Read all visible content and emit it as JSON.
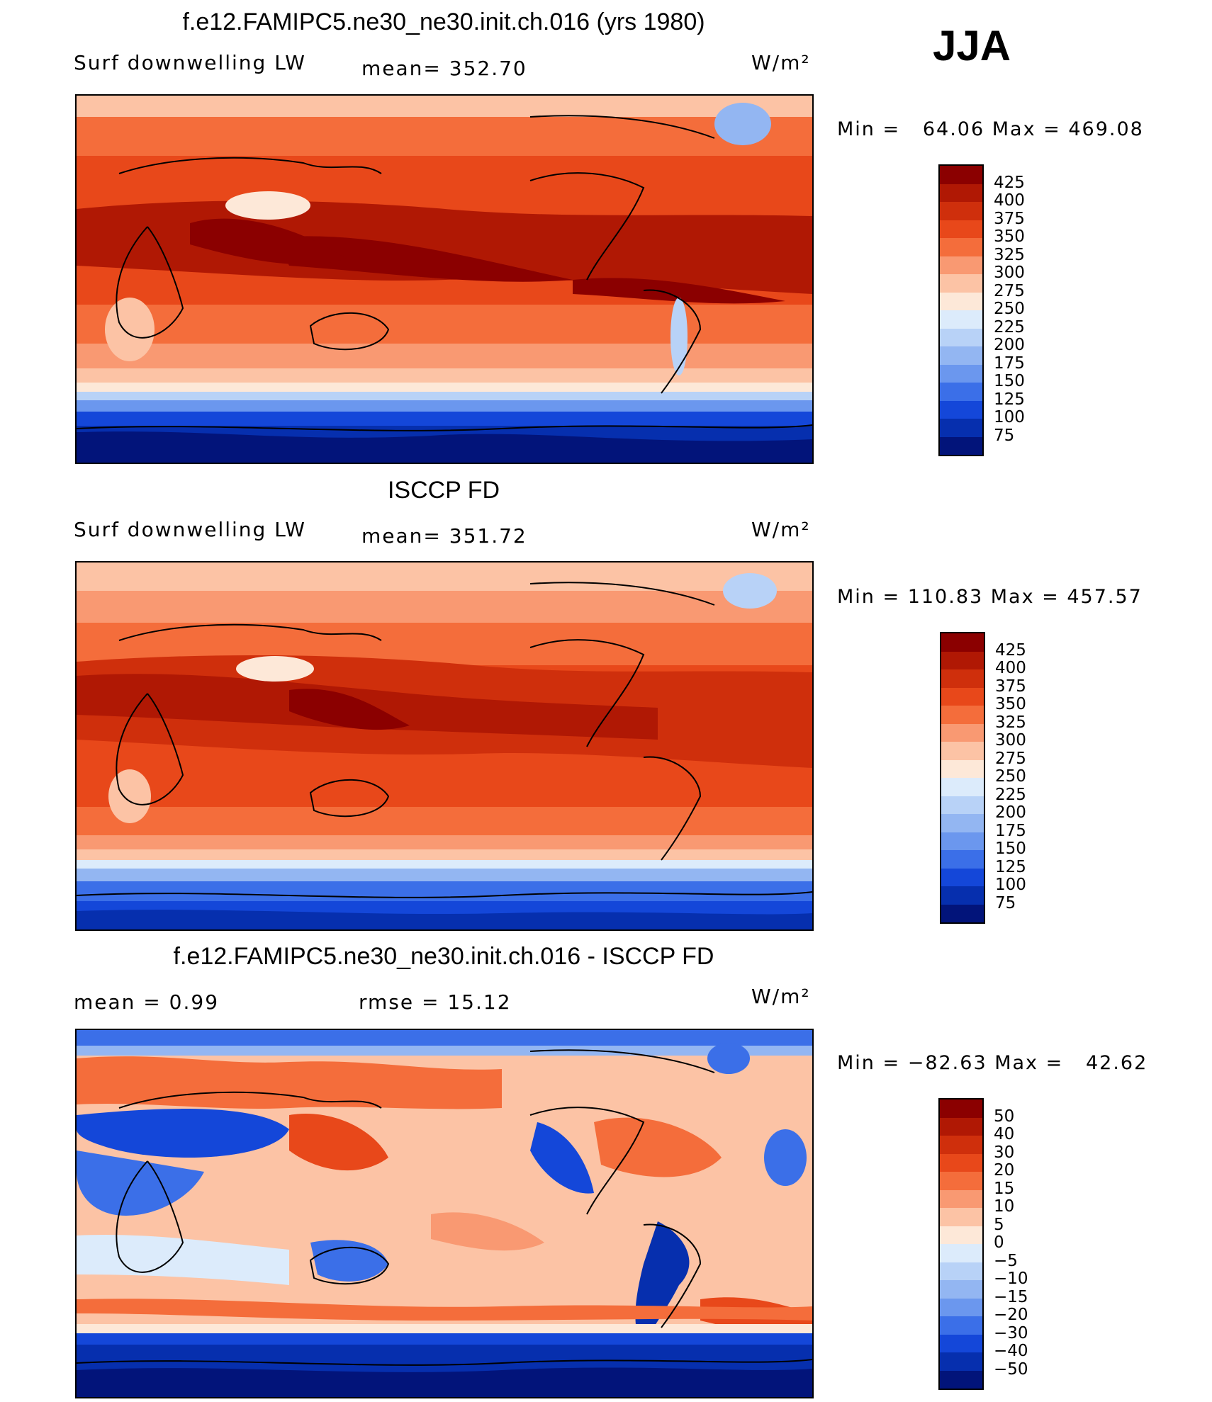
{
  "season": "JJA",
  "panels": [
    {
      "title": "f.e12.FAMIPC5.ne30_ne30.init.ch.016 (yrs 1980)",
      "left_label": "Surf downwelling LW",
      "mid_label": "mean= 352.70",
      "units": "W/m²",
      "stats": "Min =   64.06 Max = 469.08",
      "colorbar": {
        "labels": [
          "425",
          "400",
          "375",
          "350",
          "325",
          "300",
          "275",
          "250",
          "225",
          "200",
          "175",
          "150",
          "125",
          "100",
          "75"
        ],
        "colors": [
          "#8b0000",
          "#b01804",
          "#cf2f0c",
          "#e8481a",
          "#f46d3b",
          "#f99972",
          "#fcc3a5",
          "#fde8d8",
          "#dcebfb",
          "#b8d2f7",
          "#93b6f2",
          "#6b97ee",
          "#3b6fe8",
          "#1447d9",
          "#062fae",
          "#02147a"
        ]
      },
      "map_style": "model"
    },
    {
      "title": "ISCCP FD",
      "left_label": "Surf downwelling LW",
      "mid_label": "mean= 351.72",
      "units": "W/m²",
      "stats": "Min = 110.83 Max = 457.57",
      "colorbar": {
        "labels": [
          "425",
          "400",
          "375",
          "350",
          "325",
          "300",
          "275",
          "250",
          "225",
          "200",
          "175",
          "150",
          "125",
          "100",
          "75"
        ],
        "colors": [
          "#8b0000",
          "#b01804",
          "#cf2f0c",
          "#e8481a",
          "#f46d3b",
          "#f99972",
          "#fcc3a5",
          "#fde8d8",
          "#dcebfb",
          "#b8d2f7",
          "#93b6f2",
          "#6b97ee",
          "#3b6fe8",
          "#1447d9",
          "#062fae",
          "#02147a"
        ]
      },
      "map_style": "obs"
    },
    {
      "title": "f.e12.FAMIPC5.ne30_ne30.init.ch.016 - ISCCP FD",
      "left_label": "mean =    0.99",
      "mid_label": "rmse =    15.12",
      "units": "W/m²",
      "stats": "Min = −82.63 Max =   42.62",
      "colorbar": {
        "labels": [
          "50",
          "40",
          "30",
          "20",
          "15",
          "10",
          "5",
          "0",
          "−5",
          "−10",
          "−15",
          "−20",
          "−30",
          "−40",
          "−50"
        ],
        "colors": [
          "#8b0000",
          "#b01804",
          "#cf2f0c",
          "#e8481a",
          "#f46d3b",
          "#f99972",
          "#fcc3a5",
          "#fde8d8",
          "#dcebfb",
          "#b8d2f7",
          "#93b6f2",
          "#6b97ee",
          "#3b6fe8",
          "#1447d9",
          "#062fae",
          "#02147a"
        ]
      },
      "map_style": "diff"
    }
  ]
}
